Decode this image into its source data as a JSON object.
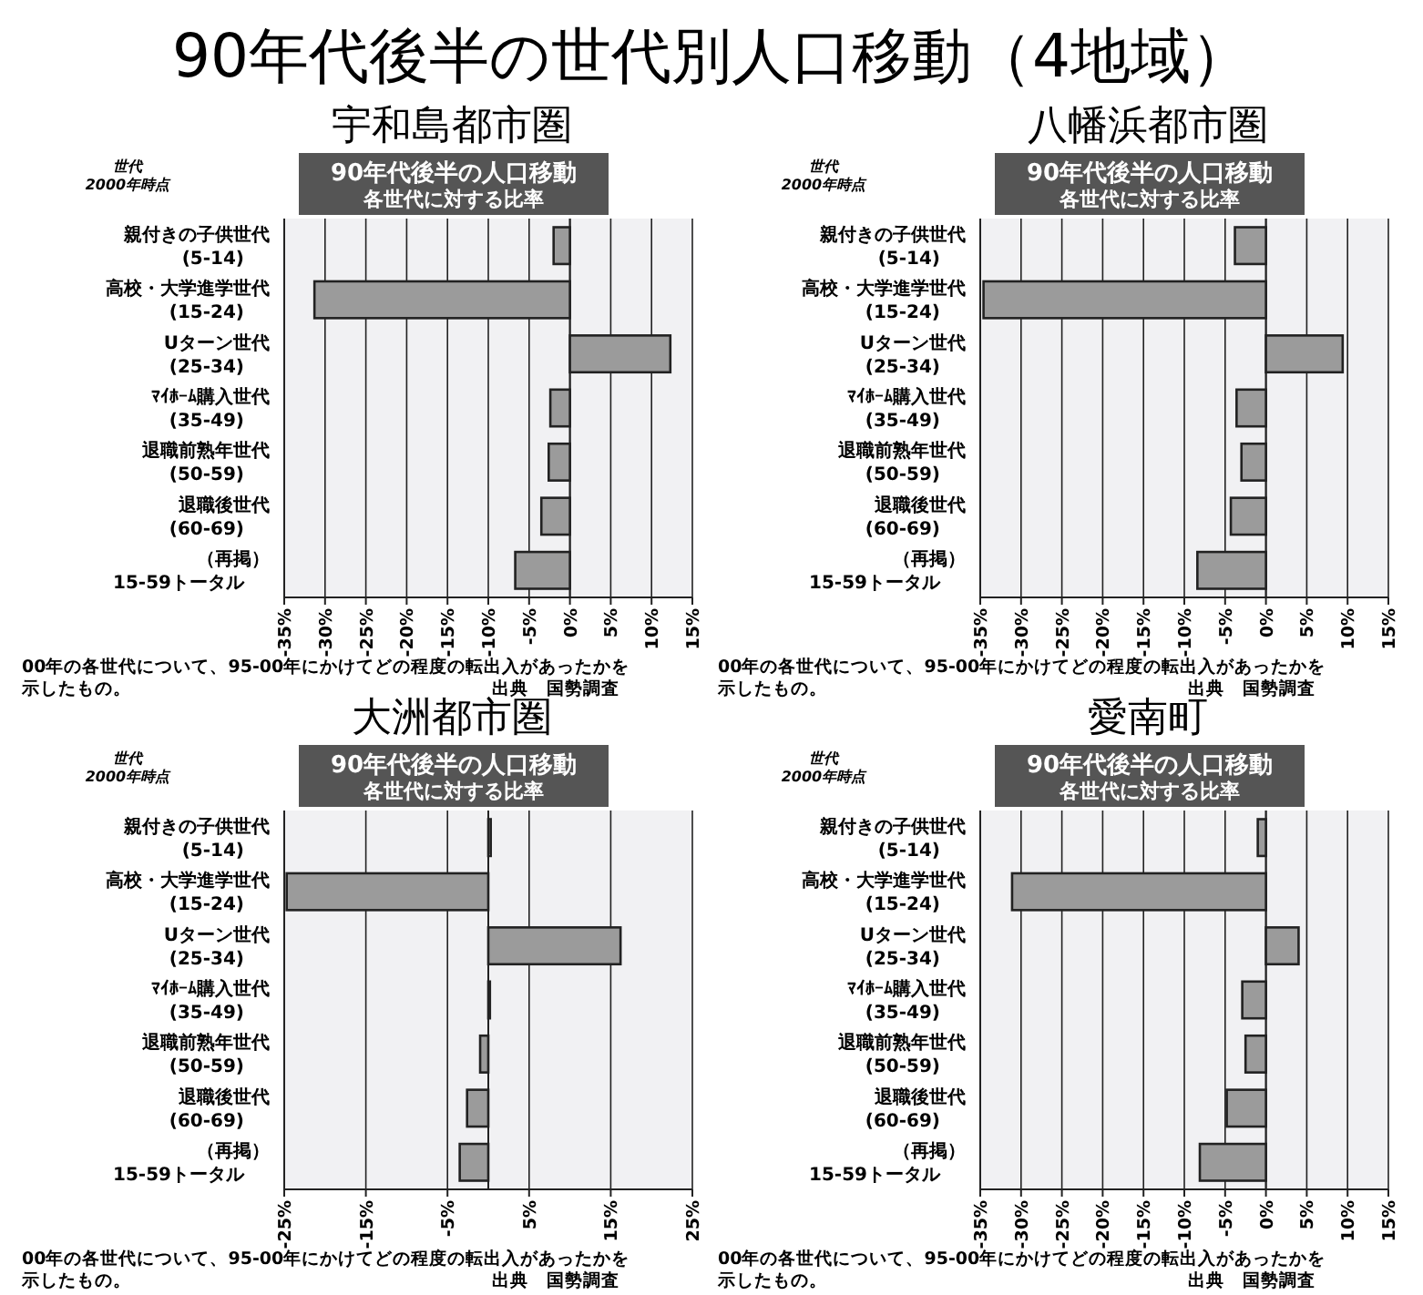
{
  "chart_data": [
    {
      "type": "bar",
      "orientation": "horizontal",
      "title": "宇和島都市圏",
      "subtitle": "90年代後半の人口移動",
      "xlabel": "各世代に対する比率",
      "ylabel": "世代\n2000年時点",
      "annotations": [
        "90年代後半の世代別人口移動（4地域）",
        "00年の各世代について、95-00年にかけてどの程度の転出入があったかを示したもの。",
        "出典　国勢調査"
      ],
      "categories": [
        "親付きの子供世代\n(5-14)",
        "高校・大学進学世代\n(15-24)",
        "Uターン世代\n(25-34)",
        "ﾏｲﾎｰﾑ購入世代\n(35-49)",
        "退職前熟年世代\n(50-59)",
        "退職後世代\n(60-69)",
        "（再掲）\n15-59トータル"
      ],
      "values": [
        -2.0,
        -31.3,
        12.3,
        -2.4,
        -2.6,
        -3.5,
        -6.7
      ],
      "color": "#9b9b9b",
      "xlim": [
        -35,
        15
      ],
      "xticks": [
        {
          "value": -35,
          "label": "-35%"
        },
        {
          "value": -30,
          "label": "-30%"
        },
        {
          "value": -25,
          "label": "-25%"
        },
        {
          "value": -20,
          "label": "-20%"
        },
        {
          "value": -15,
          "label": "-15%"
        },
        {
          "value": -10,
          "label": "-10%"
        },
        {
          "value": -5,
          "label": "-5%"
        },
        {
          "value": 0,
          "label": "0%"
        },
        {
          "value": 5,
          "label": "5%"
        },
        {
          "value": 10,
          "label": "10%"
        },
        {
          "value": 15,
          "label": "15%"
        }
      ],
      "grid": "x"
    },
    {
      "type": "bar",
      "orientation": "horizontal",
      "title": "八幡浜都市圏",
      "subtitle": "90年代後半の人口移動",
      "xlabel": "各世代に対する比率",
      "ylabel": "世代\n2000年時点",
      "annotations": [
        "00年の各世代について、95-00年にかけてどの程度の転出入があったかを示したもの。",
        "出典　国勢調査"
      ],
      "categories": [
        "親付きの子供世代\n(5-14)",
        "高校・大学進学世代\n(15-24)",
        "Uターン世代\n(25-34)",
        "ﾏｲﾎｰﾑ購入世代\n(35-49)",
        "退職前熟年世代\n(50-59)",
        "退職後世代\n(60-69)",
        "（再掲）\n15-59トータル"
      ],
      "values": [
        -3.8,
        -34.6,
        9.4,
        -3.6,
        -3.0,
        -4.3,
        -8.4
      ],
      "color": "#9b9b9b",
      "xlim": [
        -35,
        15
      ],
      "xticks": [
        {
          "value": -35,
          "label": "-35%"
        },
        {
          "value": -30,
          "label": "-30%"
        },
        {
          "value": -25,
          "label": "-25%"
        },
        {
          "value": -20,
          "label": "-20%"
        },
        {
          "value": -15,
          "label": "-15%"
        },
        {
          "value": -10,
          "label": "-10%"
        },
        {
          "value": -5,
          "label": "-5%"
        },
        {
          "value": 0,
          "label": "0%"
        },
        {
          "value": 5,
          "label": "5%"
        },
        {
          "value": 10,
          "label": "10%"
        },
        {
          "value": 15,
          "label": "15%"
        }
      ],
      "grid": "x"
    },
    {
      "type": "bar",
      "orientation": "horizontal",
      "title": "大洲都市圏",
      "subtitle": "90年代後半の人口移動",
      "xlabel": "各世代に対する比率",
      "ylabel": "世代\n2000年時点",
      "annotations": [
        "00年の各世代について、95-00年にかけてどの程度の転出入があったかを示したもの。",
        "出典　国勢調査"
      ],
      "categories": [
        "親付きの子供世代\n(5-14)",
        "高校・大学進学世代\n(15-24)",
        "Uターン世代\n(25-34)",
        "ﾏｲﾎｰﾑ購入世代\n(35-49)",
        "退職前熟年世代\n(50-59)",
        "退職後世代\n(60-69)",
        "（再掲）\n15-59トータル"
      ],
      "values": [
        0.3,
        -24.7,
        16.2,
        0.2,
        -1.0,
        -2.6,
        -3.5
      ],
      "color": "#9b9b9b",
      "xlim": [
        -25,
        25
      ],
      "xticks": [
        {
          "value": -25,
          "label": "-25%"
        },
        {
          "value": -15,
          "label": "-15%"
        },
        {
          "value": -5,
          "label": "-5%"
        },
        {
          "value": 5,
          "label": "5%"
        },
        {
          "value": 15,
          "label": "15%"
        },
        {
          "value": 25,
          "label": "25%"
        }
      ],
      "grid": "x"
    },
    {
      "type": "bar",
      "orientation": "horizontal",
      "title": "愛南町",
      "subtitle": "90年代後半の人口移動",
      "xlabel": "各世代に対する比率",
      "ylabel": "世代\n2000年時点",
      "annotations": [
        "00年の各世代について、95-00年にかけてどの程度の転出入があったかを示したもの。",
        "出典　国勢調査"
      ],
      "categories": [
        "親付きの子供世代\n(5-14)",
        "高校・大学進学世代\n(15-24)",
        "Uターン世代\n(25-34)",
        "ﾏｲﾎｰﾑ購入世代\n(35-49)",
        "退職前熟年世代\n(50-59)",
        "退職後世代\n(60-69)",
        "（再掲）\n15-59トータル"
      ],
      "values": [
        -1.0,
        -31.1,
        4.0,
        -2.9,
        -2.5,
        -4.8,
        -8.1
      ],
      "color": "#9b9b9b",
      "xlim": [
        -35,
        15
      ],
      "xticks": [
        {
          "value": -35,
          "label": "-35%"
        },
        {
          "value": -30,
          "label": "-30%"
        },
        {
          "value": -25,
          "label": "-25%"
        },
        {
          "value": -20,
          "label": "-20%"
        },
        {
          "value": -15,
          "label": "-15%"
        },
        {
          "value": -10,
          "label": "-10%"
        },
        {
          "value": -5,
          "label": "-5%"
        },
        {
          "value": 0,
          "label": "0%"
        },
        {
          "value": 5,
          "label": "5%"
        },
        {
          "value": 10,
          "label": "10%"
        },
        {
          "value": 15,
          "label": "15%"
        }
      ],
      "grid": "x"
    }
  ]
}
